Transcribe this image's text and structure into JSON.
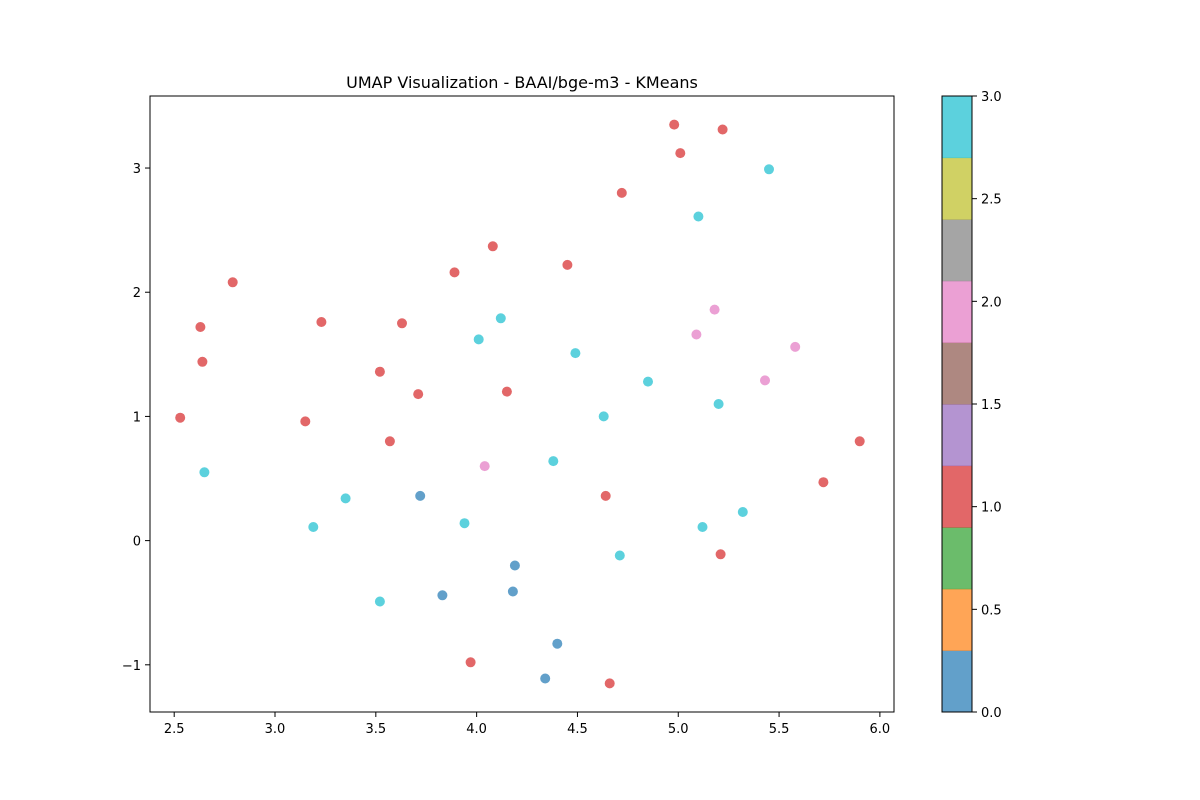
{
  "chart_data": {
    "type": "scatter",
    "title": "UMAP Visualization - BAAI/bge-m3 - KMeans",
    "xlabel": "",
    "ylabel": "",
    "xlim": [
      2.38,
      6.07
    ],
    "ylim": [
      -1.38,
      3.58
    ],
    "x_ticks": [
      2.5,
      3.0,
      3.5,
      4.0,
      4.5,
      5.0,
      5.5,
      6.0
    ],
    "x_tick_labels": [
      "2.5",
      "3.0",
      "3.5",
      "4.0",
      "4.5",
      "5.0",
      "5.5",
      "6.0"
    ],
    "y_ticks": [
      -1,
      0,
      1,
      2,
      3
    ],
    "y_tick_labels": [
      "−1",
      "0",
      "1",
      "2",
      "3"
    ],
    "grid": false,
    "colorbar": {
      "range": [
        0.0,
        3.0
      ],
      "ticks": [
        0.0,
        0.5,
        1.0,
        1.5,
        2.0,
        2.5,
        3.0
      ],
      "tick_labels": [
        "0.0",
        "0.5",
        "1.0",
        "1.5",
        "2.0",
        "2.5",
        "3.0"
      ],
      "colors": [
        "#1f77b4",
        "#ff7f0e",
        "#2ca02c",
        "#d62728",
        "#9467bd",
        "#8c564b",
        "#e377c2",
        "#7f7f7f",
        "#bcbd22",
        "#17becf"
      ]
    },
    "cluster_colors": {
      "0": "#1f77b4",
      "1": "#d62728",
      "2": "#e377c2",
      "3": "#17becf"
    },
    "points": [
      {
        "x": 4.98,
        "y": 3.35,
        "cluster": 1
      },
      {
        "x": 5.22,
        "y": 3.31,
        "cluster": 1
      },
      {
        "x": 5.01,
        "y": 3.12,
        "cluster": 1
      },
      {
        "x": 4.72,
        "y": 2.8,
        "cluster": 1
      },
      {
        "x": 4.08,
        "y": 2.37,
        "cluster": 1
      },
      {
        "x": 4.45,
        "y": 2.22,
        "cluster": 1
      },
      {
        "x": 3.89,
        "y": 2.16,
        "cluster": 1
      },
      {
        "x": 2.79,
        "y": 2.08,
        "cluster": 1
      },
      {
        "x": 2.63,
        "y": 1.72,
        "cluster": 1
      },
      {
        "x": 3.23,
        "y": 1.76,
        "cluster": 1
      },
      {
        "x": 3.63,
        "y": 1.75,
        "cluster": 1
      },
      {
        "x": 2.64,
        "y": 1.44,
        "cluster": 1
      },
      {
        "x": 3.52,
        "y": 1.36,
        "cluster": 1
      },
      {
        "x": 3.71,
        "y": 1.18,
        "cluster": 1
      },
      {
        "x": 4.15,
        "y": 1.2,
        "cluster": 1
      },
      {
        "x": 2.53,
        "y": 0.99,
        "cluster": 1
      },
      {
        "x": 3.15,
        "y": 0.96,
        "cluster": 1
      },
      {
        "x": 3.57,
        "y": 0.8,
        "cluster": 1
      },
      {
        "x": 5.9,
        "y": 0.8,
        "cluster": 1
      },
      {
        "x": 5.72,
        "y": 0.47,
        "cluster": 1
      },
      {
        "x": 4.64,
        "y": 0.36,
        "cluster": 1
      },
      {
        "x": 5.21,
        "y": -0.11,
        "cluster": 1
      },
      {
        "x": 3.97,
        "y": -0.98,
        "cluster": 1
      },
      {
        "x": 4.66,
        "y": -1.15,
        "cluster": 1
      },
      {
        "x": 5.45,
        "y": 2.99,
        "cluster": 3
      },
      {
        "x": 5.1,
        "y": 2.61,
        "cluster": 3
      },
      {
        "x": 4.12,
        "y": 1.79,
        "cluster": 3
      },
      {
        "x": 4.01,
        "y": 1.62,
        "cluster": 3
      },
      {
        "x": 4.49,
        "y": 1.51,
        "cluster": 3
      },
      {
        "x": 4.85,
        "y": 1.28,
        "cluster": 3
      },
      {
        "x": 5.2,
        "y": 1.1,
        "cluster": 3
      },
      {
        "x": 4.63,
        "y": 1.0,
        "cluster": 3
      },
      {
        "x": 4.38,
        "y": 0.64,
        "cluster": 3
      },
      {
        "x": 2.65,
        "y": 0.55,
        "cluster": 3
      },
      {
        "x": 3.35,
        "y": 0.34,
        "cluster": 3
      },
      {
        "x": 5.32,
        "y": 0.23,
        "cluster": 3
      },
      {
        "x": 3.94,
        "y": 0.14,
        "cluster": 3
      },
      {
        "x": 3.19,
        "y": 0.11,
        "cluster": 3
      },
      {
        "x": 5.12,
        "y": 0.11,
        "cluster": 3
      },
      {
        "x": 4.71,
        "y": -0.12,
        "cluster": 3
      },
      {
        "x": 3.52,
        "y": -0.49,
        "cluster": 3
      },
      {
        "x": 5.18,
        "y": 1.86,
        "cluster": 2
      },
      {
        "x": 5.09,
        "y": 1.66,
        "cluster": 2
      },
      {
        "x": 5.58,
        "y": 1.56,
        "cluster": 2
      },
      {
        "x": 5.43,
        "y": 1.29,
        "cluster": 2
      },
      {
        "x": 4.04,
        "y": 0.6,
        "cluster": 2
      },
      {
        "x": 3.72,
        "y": 0.36,
        "cluster": 0
      },
      {
        "x": 4.19,
        "y": -0.2,
        "cluster": 0
      },
      {
        "x": 4.18,
        "y": -0.41,
        "cluster": 0
      },
      {
        "x": 3.83,
        "y": -0.44,
        "cluster": 0
      },
      {
        "x": 4.4,
        "y": -0.83,
        "cluster": 0
      },
      {
        "x": 4.34,
        "y": -1.11,
        "cluster": 0
      }
    ]
  }
}
